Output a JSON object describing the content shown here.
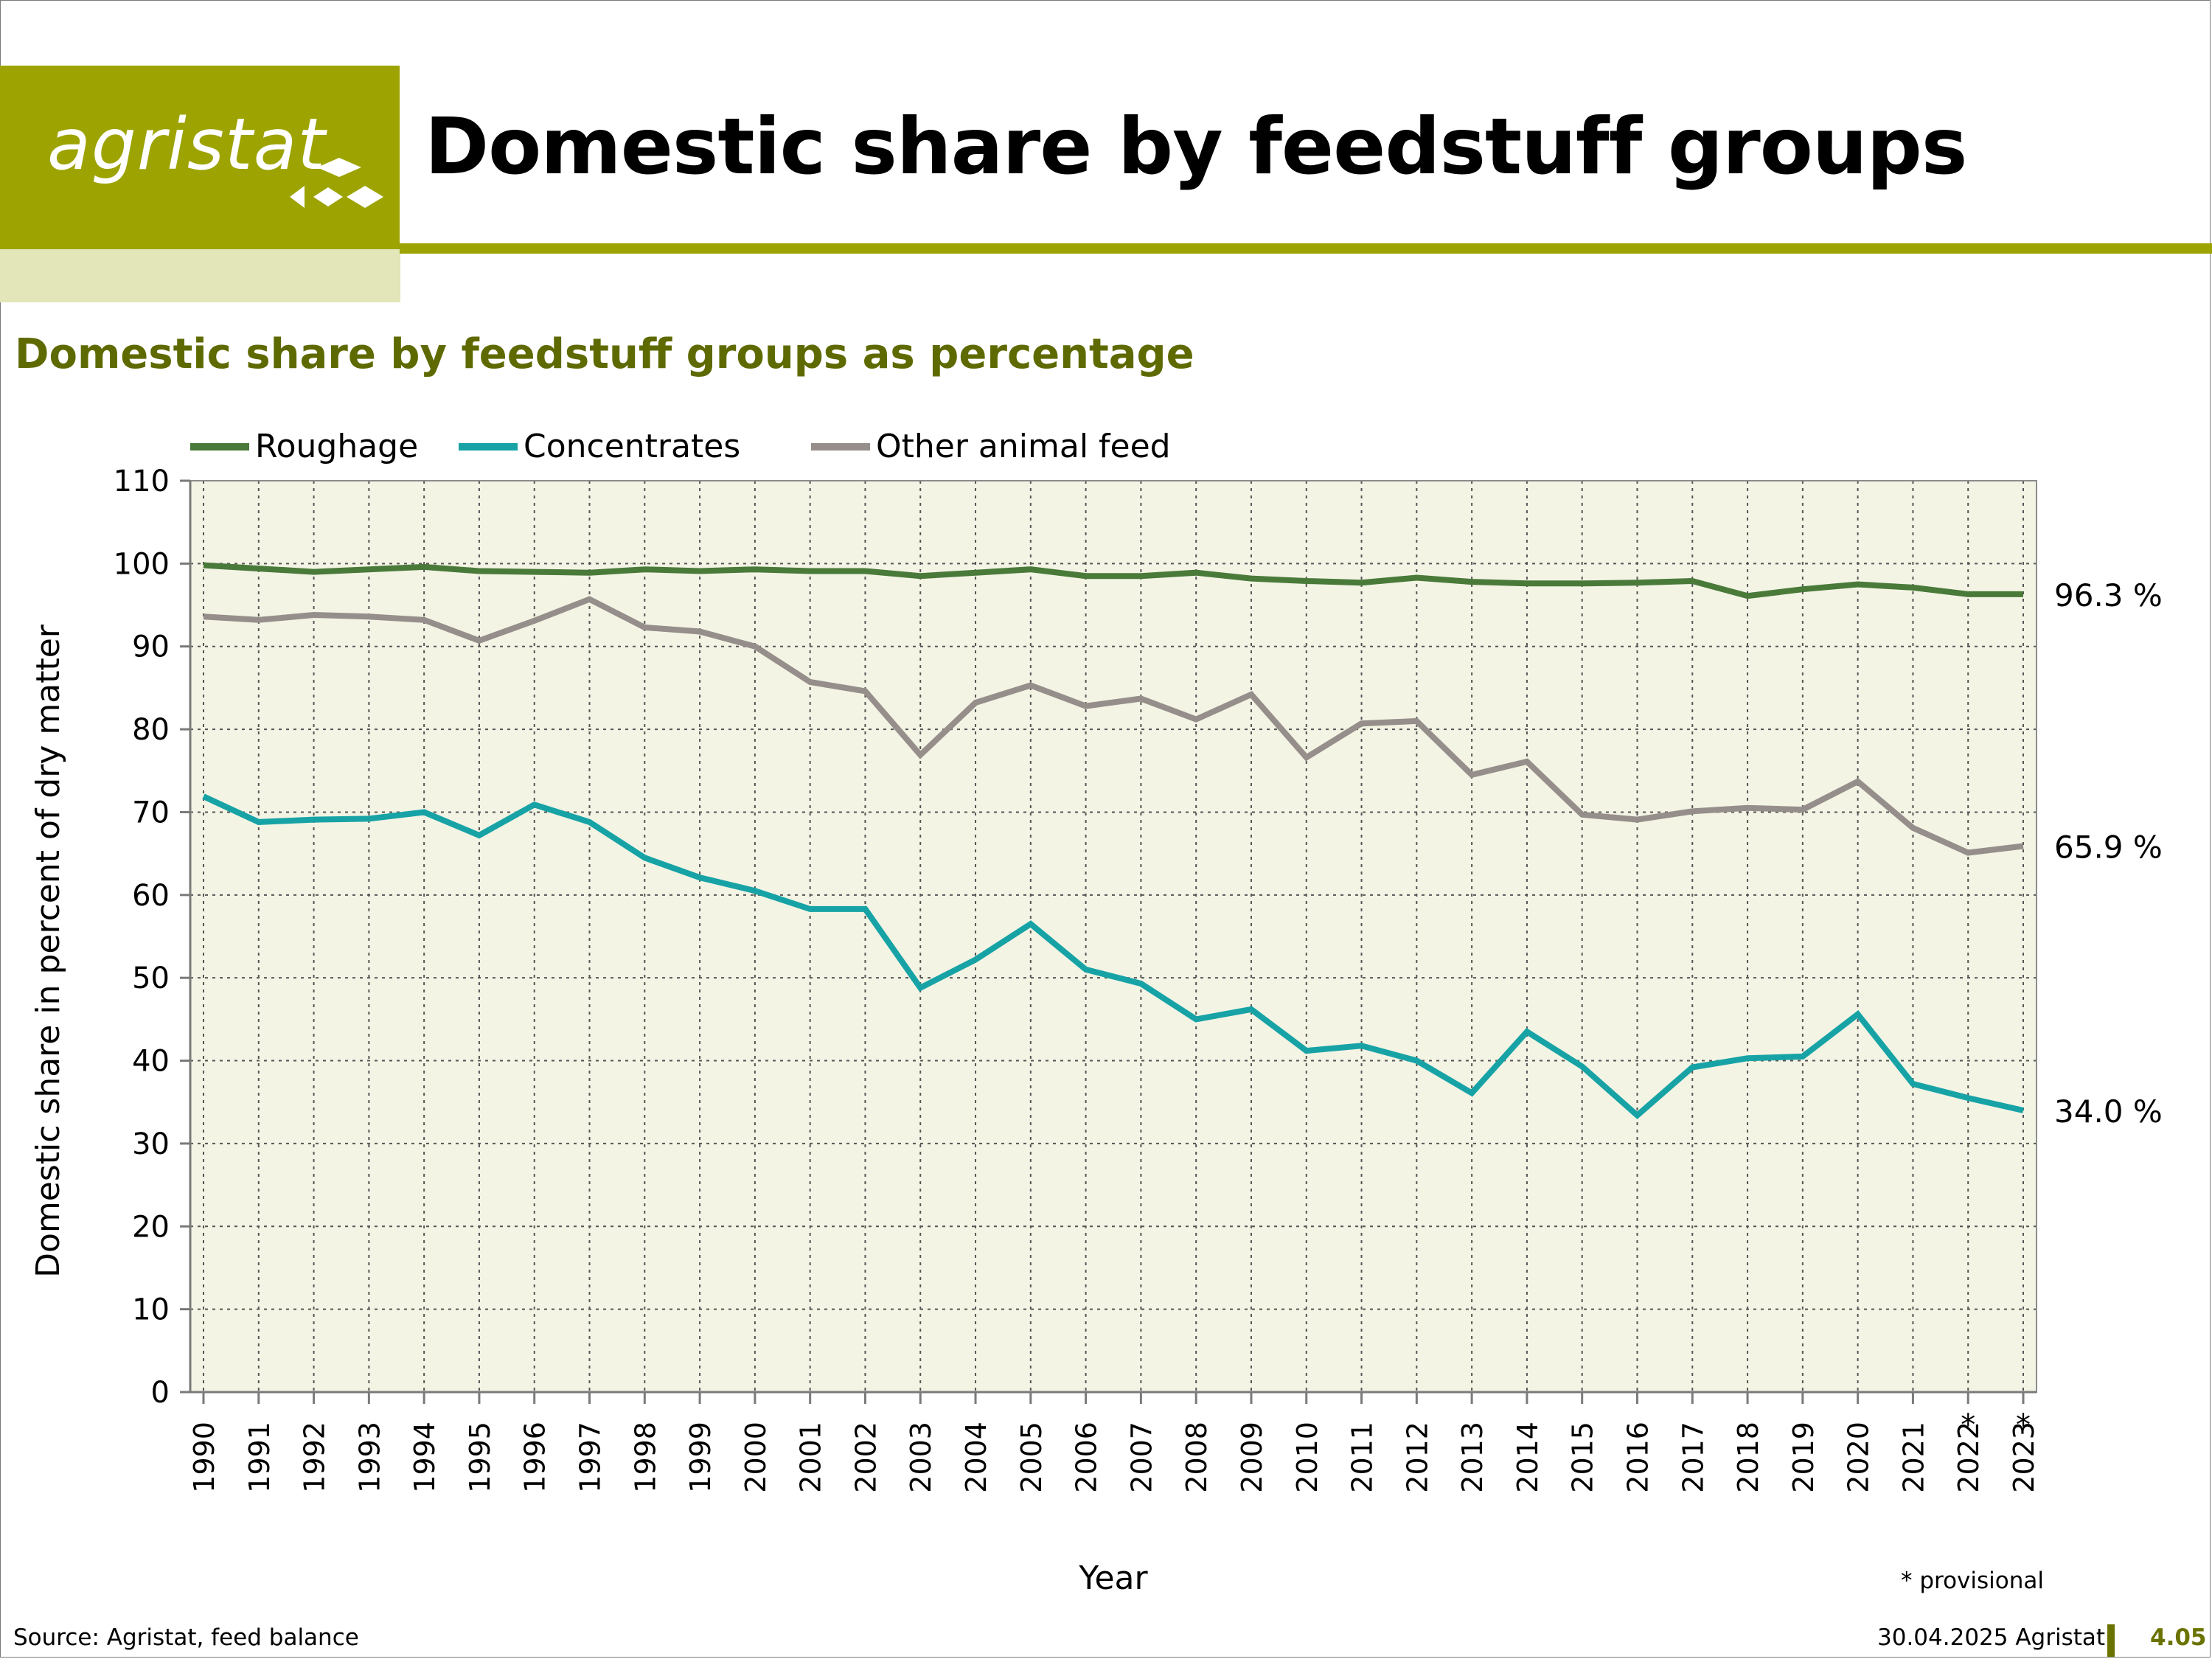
{
  "header": {
    "logo_text": "agristat",
    "title": "Domestic share by feedstuff groups"
  },
  "subtitle": "Domestic share by feedstuff groups as percentage",
  "footer": {
    "source": "Source: Agristat, feed balance",
    "date": "30.04.2025 Agristat",
    "page_number": "4.05",
    "provisional_note": "* provisional"
  },
  "colors": {
    "brand": "#9da300",
    "brand_light": "#e2e6b8",
    "subtitle": "#5e6a00",
    "plot_bg": "#f3f4e4",
    "roughage": "#4a7a3a",
    "concentrates": "#17a3a6",
    "other": "#968e8a"
  },
  "chart_data": {
    "type": "line",
    "title": "Domestic share by feedstuff groups as percentage",
    "xlabel": "Year",
    "ylabel": "Domestic share in percent of dry matter",
    "ylim": [
      0,
      110
    ],
    "yticks": [
      0,
      10,
      20,
      30,
      40,
      50,
      60,
      70,
      80,
      90,
      100,
      110
    ],
    "grid": true,
    "legend_position": "top-left",
    "categories": [
      "1990",
      "1991",
      "1992",
      "1993",
      "1994",
      "1995",
      "1996",
      "1997",
      "1998",
      "1999",
      "2000",
      "2001",
      "2002",
      "2003",
      "2004",
      "2005",
      "2006",
      "2007",
      "2008",
      "2009",
      "2010",
      "2011",
      "2012",
      "2013",
      "2014",
      "2015",
      "2016",
      "2017",
      "2018",
      "2019",
      "2020",
      "2021",
      "2022",
      "2023"
    ],
    "provisional_markers": [
      "2022",
      "2023"
    ],
    "provisional_symbol": "*",
    "series": [
      {
        "name": "Roughage",
        "color": "#4a7a3a",
        "end_label": "96.3 %",
        "values": [
          99.8,
          99.4,
          99.0,
          99.3,
          99.6,
          99.1,
          99.0,
          98.9,
          99.3,
          99.1,
          99.3,
          99.1,
          99.1,
          98.5,
          98.9,
          99.3,
          98.5,
          98.5,
          98.9,
          98.2,
          97.9,
          97.7,
          98.3,
          97.8,
          97.6,
          97.6,
          97.7,
          97.9,
          96.1,
          96.9,
          97.5,
          97.1,
          96.3,
          96.3
        ]
      },
      {
        "name": "Concentrates",
        "color": "#17a3a6",
        "end_label": "34.0 %",
        "values": [
          71.9,
          68.8,
          69.1,
          69.2,
          70.0,
          67.2,
          70.9,
          68.8,
          64.5,
          62.1,
          60.5,
          58.3,
          58.3,
          48.8,
          52.2,
          56.5,
          51.0,
          49.3,
          45.0,
          46.2,
          41.2,
          41.8,
          40.0,
          36.1,
          43.5,
          39.3,
          33.4,
          39.2,
          40.3,
          40.5,
          45.6,
          37.2,
          35.5,
          34.0
        ]
      },
      {
        "name": "Other animal feed",
        "color": "#968e8a",
        "end_label": "65.9 %",
        "values": [
          93.6,
          93.2,
          93.8,
          93.6,
          93.2,
          90.7,
          93.1,
          95.7,
          92.3,
          91.8,
          90.0,
          85.7,
          84.6,
          76.9,
          83.2,
          85.3,
          82.8,
          83.7,
          81.2,
          84.2,
          76.6,
          80.7,
          81.0,
          74.5,
          76.1,
          69.7,
          69.1,
          70.1,
          70.5,
          70.3,
          73.7,
          68.1,
          65.1,
          65.9
        ]
      }
    ]
  }
}
